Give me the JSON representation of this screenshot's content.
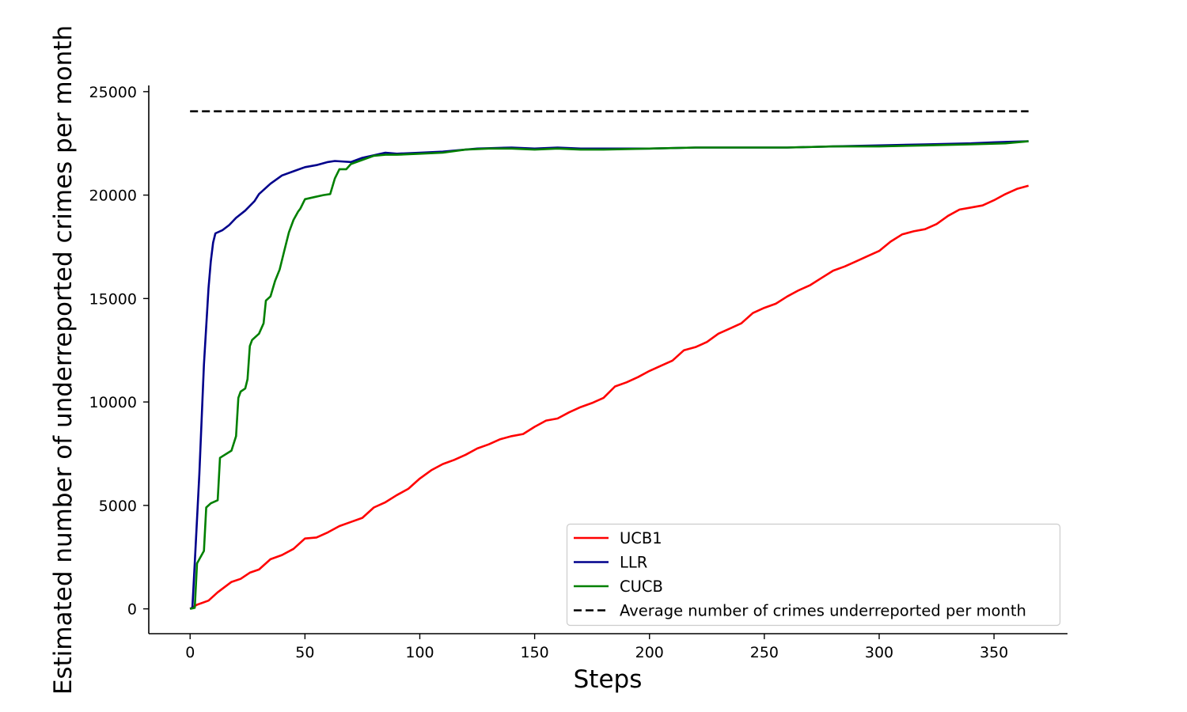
{
  "chart_data": {
    "type": "line",
    "title": "",
    "xlabel": "Steps",
    "ylabel": "Estimated number of underreported crimes per month",
    "xlim": [
      -18,
      382
    ],
    "ylim": [
      -1200,
      25300
    ],
    "xticks": [
      0,
      50,
      100,
      150,
      200,
      250,
      300,
      350
    ],
    "yticks": [
      0,
      5000,
      10000,
      15000,
      20000,
      25000
    ],
    "grid": false,
    "legend_position": "lower-right",
    "series": [
      {
        "name": "UCB1",
        "color": "#ff0000",
        "style": "solid",
        "points": [
          [
            0,
            0
          ],
          [
            3,
            200
          ],
          [
            8,
            400
          ],
          [
            12,
            800
          ],
          [
            18,
            1300
          ],
          [
            22,
            1450
          ],
          [
            26,
            1750
          ],
          [
            30,
            1900
          ],
          [
            35,
            2400
          ],
          [
            40,
            2600
          ],
          [
            45,
            2900
          ],
          [
            50,
            3400
          ],
          [
            55,
            3450
          ],
          [
            60,
            3700
          ],
          [
            65,
            4000
          ],
          [
            70,
            4200
          ],
          [
            75,
            4400
          ],
          [
            80,
            4900
          ],
          [
            85,
            5150
          ],
          [
            90,
            5500
          ],
          [
            95,
            5800
          ],
          [
            100,
            6300
          ],
          [
            105,
            6700
          ],
          [
            110,
            7000
          ],
          [
            115,
            7200
          ],
          [
            120,
            7450
          ],
          [
            125,
            7750
          ],
          [
            130,
            7950
          ],
          [
            135,
            8200
          ],
          [
            140,
            8350
          ],
          [
            145,
            8450
          ],
          [
            150,
            8800
          ],
          [
            155,
            9100
          ],
          [
            160,
            9200
          ],
          [
            165,
            9500
          ],
          [
            170,
            9750
          ],
          [
            175,
            9950
          ],
          [
            180,
            10200
          ],
          [
            185,
            10750
          ],
          [
            190,
            10950
          ],
          [
            195,
            11200
          ],
          [
            200,
            11500
          ],
          [
            205,
            11750
          ],
          [
            210,
            12000
          ],
          [
            215,
            12500
          ],
          [
            220,
            12650
          ],
          [
            225,
            12900
          ],
          [
            230,
            13300
          ],
          [
            235,
            13550
          ],
          [
            240,
            13800
          ],
          [
            245,
            14300
          ],
          [
            250,
            14550
          ],
          [
            255,
            14750
          ],
          [
            260,
            15100
          ],
          [
            265,
            15400
          ],
          [
            270,
            15650
          ],
          [
            275,
            16000
          ],
          [
            280,
            16350
          ],
          [
            285,
            16550
          ],
          [
            290,
            16800
          ],
          [
            295,
            17050
          ],
          [
            300,
            17300
          ],
          [
            305,
            17750
          ],
          [
            310,
            18100
          ],
          [
            315,
            18250
          ],
          [
            320,
            18350
          ],
          [
            325,
            18600
          ],
          [
            330,
            19000
          ],
          [
            335,
            19300
          ],
          [
            340,
            19400
          ],
          [
            345,
            19500
          ],
          [
            350,
            19750
          ],
          [
            355,
            20050
          ],
          [
            360,
            20300
          ],
          [
            365,
            20450
          ]
        ]
      },
      {
        "name": "LLR",
        "color": "#00008b",
        "style": "solid",
        "points": [
          [
            0,
            0
          ],
          [
            1,
            50
          ],
          [
            2,
            2200
          ],
          [
            4,
            6500
          ],
          [
            6,
            11800
          ],
          [
            8,
            15500
          ],
          [
            9,
            16800
          ],
          [
            10,
            17700
          ],
          [
            11,
            18150
          ],
          [
            14,
            18300
          ],
          [
            17,
            18550
          ],
          [
            20,
            18900
          ],
          [
            24,
            19250
          ],
          [
            28,
            19700
          ],
          [
            30,
            20050
          ],
          [
            35,
            20550
          ],
          [
            40,
            20950
          ],
          [
            45,
            21150
          ],
          [
            50,
            21350
          ],
          [
            55,
            21450
          ],
          [
            60,
            21600
          ],
          [
            63,
            21650
          ],
          [
            70,
            21600
          ],
          [
            75,
            21800
          ],
          [
            85,
            22050
          ],
          [
            90,
            22000
          ],
          [
            100,
            22050
          ],
          [
            110,
            22100
          ],
          [
            120,
            22200
          ],
          [
            125,
            22250
          ],
          [
            140,
            22300
          ],
          [
            150,
            22250
          ],
          [
            160,
            22300
          ],
          [
            170,
            22250
          ],
          [
            180,
            22250
          ],
          [
            200,
            22250
          ],
          [
            220,
            22300
          ],
          [
            240,
            22300
          ],
          [
            260,
            22300
          ],
          [
            280,
            22350
          ],
          [
            300,
            22400
          ],
          [
            320,
            22450
          ],
          [
            340,
            22500
          ],
          [
            350,
            22550
          ],
          [
            365,
            22600
          ]
        ]
      },
      {
        "name": "CUCB",
        "color": "#008000",
        "style": "solid",
        "points": [
          [
            0,
            0
          ],
          [
            2,
            50
          ],
          [
            3,
            2200
          ],
          [
            5,
            2600
          ],
          [
            6,
            2800
          ],
          [
            7,
            4900
          ],
          [
            9,
            5100
          ],
          [
            12,
            5250
          ],
          [
            13,
            7300
          ],
          [
            18,
            7650
          ],
          [
            20,
            8350
          ],
          [
            21,
            10200
          ],
          [
            22,
            10500
          ],
          [
            24,
            10650
          ],
          [
            25,
            11100
          ],
          [
            26,
            12700
          ],
          [
            27,
            13000
          ],
          [
            30,
            13300
          ],
          [
            32,
            13800
          ],
          [
            33,
            14900
          ],
          [
            35,
            15100
          ],
          [
            37,
            15850
          ],
          [
            39,
            16400
          ],
          [
            41,
            17300
          ],
          [
            43,
            18200
          ],
          [
            45,
            18800
          ],
          [
            47,
            19200
          ],
          [
            48,
            19350
          ],
          [
            50,
            19800
          ],
          [
            54,
            19900
          ],
          [
            58,
            20000
          ],
          [
            61,
            20050
          ],
          [
            63,
            20800
          ],
          [
            65,
            21250
          ],
          [
            68,
            21250
          ],
          [
            70,
            21500
          ],
          [
            75,
            21700
          ],
          [
            80,
            21900
          ],
          [
            85,
            21950
          ],
          [
            90,
            21950
          ],
          [
            100,
            22000
          ],
          [
            110,
            22050
          ],
          [
            120,
            22200
          ],
          [
            130,
            22250
          ],
          [
            140,
            22250
          ],
          [
            150,
            22200
          ],
          [
            160,
            22250
          ],
          [
            170,
            22200
          ],
          [
            180,
            22200
          ],
          [
            200,
            22250
          ],
          [
            220,
            22300
          ],
          [
            240,
            22300
          ],
          [
            260,
            22300
          ],
          [
            280,
            22350
          ],
          [
            300,
            22350
          ],
          [
            320,
            22400
          ],
          [
            340,
            22450
          ],
          [
            355,
            22500
          ],
          [
            365,
            22600
          ]
        ]
      },
      {
        "name": "Average number of crimes underreported per month",
        "color": "#000000",
        "style": "dashed",
        "points": [
          [
            0,
            24050
          ],
          [
            365,
            24050
          ]
        ]
      }
    ]
  }
}
